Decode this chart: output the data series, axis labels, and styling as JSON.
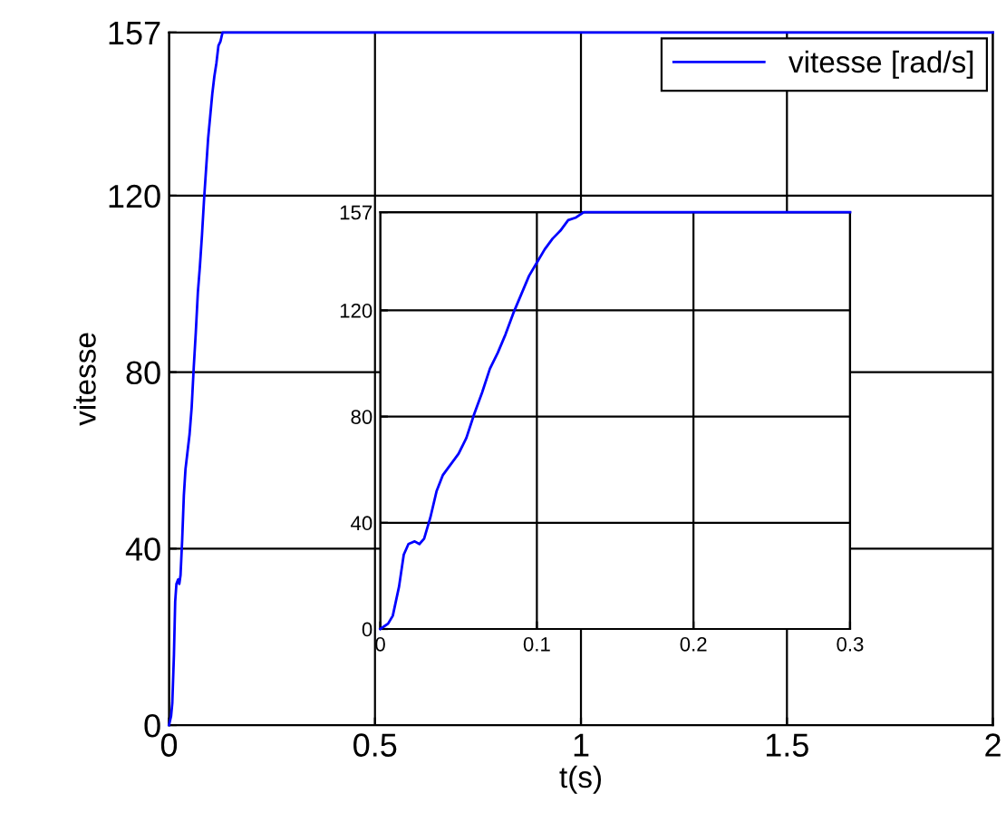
{
  "chart_data": [
    {
      "type": "line",
      "xlabel": "t(s)",
      "ylabel": "vitesse",
      "xlim": [
        0,
        2
      ],
      "ylim": [
        0,
        157
      ],
      "xticks": [
        0,
        0.5,
        1,
        1.5,
        2
      ],
      "yticks": [
        0,
        40,
        80,
        120,
        157
      ],
      "grid": true,
      "legend": "top right",
      "series": [
        {
          "name": "vitesse [rad/s]",
          "color": "#0000ff",
          "x": [
            0,
            0.005,
            0.008,
            0.012,
            0.015,
            0.018,
            0.022,
            0.025,
            0.028,
            0.032,
            0.036,
            0.04,
            0.045,
            0.05,
            0.055,
            0.06,
            0.065,
            0.07,
            0.075,
            0.08,
            0.085,
            0.09,
            0.095,
            0.1,
            0.105,
            0.11,
            0.115,
            0.12,
            0.125,
            0.13,
            0.135,
            0.2,
            0.5,
            1,
            1.5,
            2
          ],
          "values": [
            0,
            2,
            5,
            16,
            28,
            32,
            33,
            32,
            34,
            42,
            52,
            58,
            62,
            66,
            72,
            81,
            89,
            98,
            104,
            111,
            119,
            126,
            133,
            138,
            143,
            147,
            150,
            154,
            155,
            157,
            157,
            157,
            157,
            157,
            157,
            157
          ]
        }
      ]
    },
    {
      "type": "line",
      "xlim": [
        0,
        0.3
      ],
      "ylim": [
        0,
        157
      ],
      "xticks": [
        0,
        0.1,
        0.2,
        0.3
      ],
      "yticks": [
        0,
        40,
        80,
        120,
        157
      ],
      "grid": true,
      "series": [
        {
          "color": "#0000ff",
          "x": [
            0,
            0.005,
            0.008,
            0.012,
            0.015,
            0.018,
            0.022,
            0.025,
            0.028,
            0.032,
            0.036,
            0.04,
            0.045,
            0.05,
            0.055,
            0.06,
            0.065,
            0.07,
            0.075,
            0.08,
            0.085,
            0.09,
            0.095,
            0.1,
            0.105,
            0.11,
            0.115,
            0.12,
            0.125,
            0.13,
            0.135,
            0.2,
            0.3
          ],
          "values": [
            0,
            2,
            5,
            16,
            28,
            32,
            33,
            32,
            34,
            42,
            52,
            58,
            62,
            66,
            72,
            81,
            89,
            98,
            104,
            111,
            119,
            126,
            133,
            138,
            143,
            147,
            150,
            154,
            155,
            157,
            157,
            157,
            157
          ]
        }
      ]
    }
  ]
}
